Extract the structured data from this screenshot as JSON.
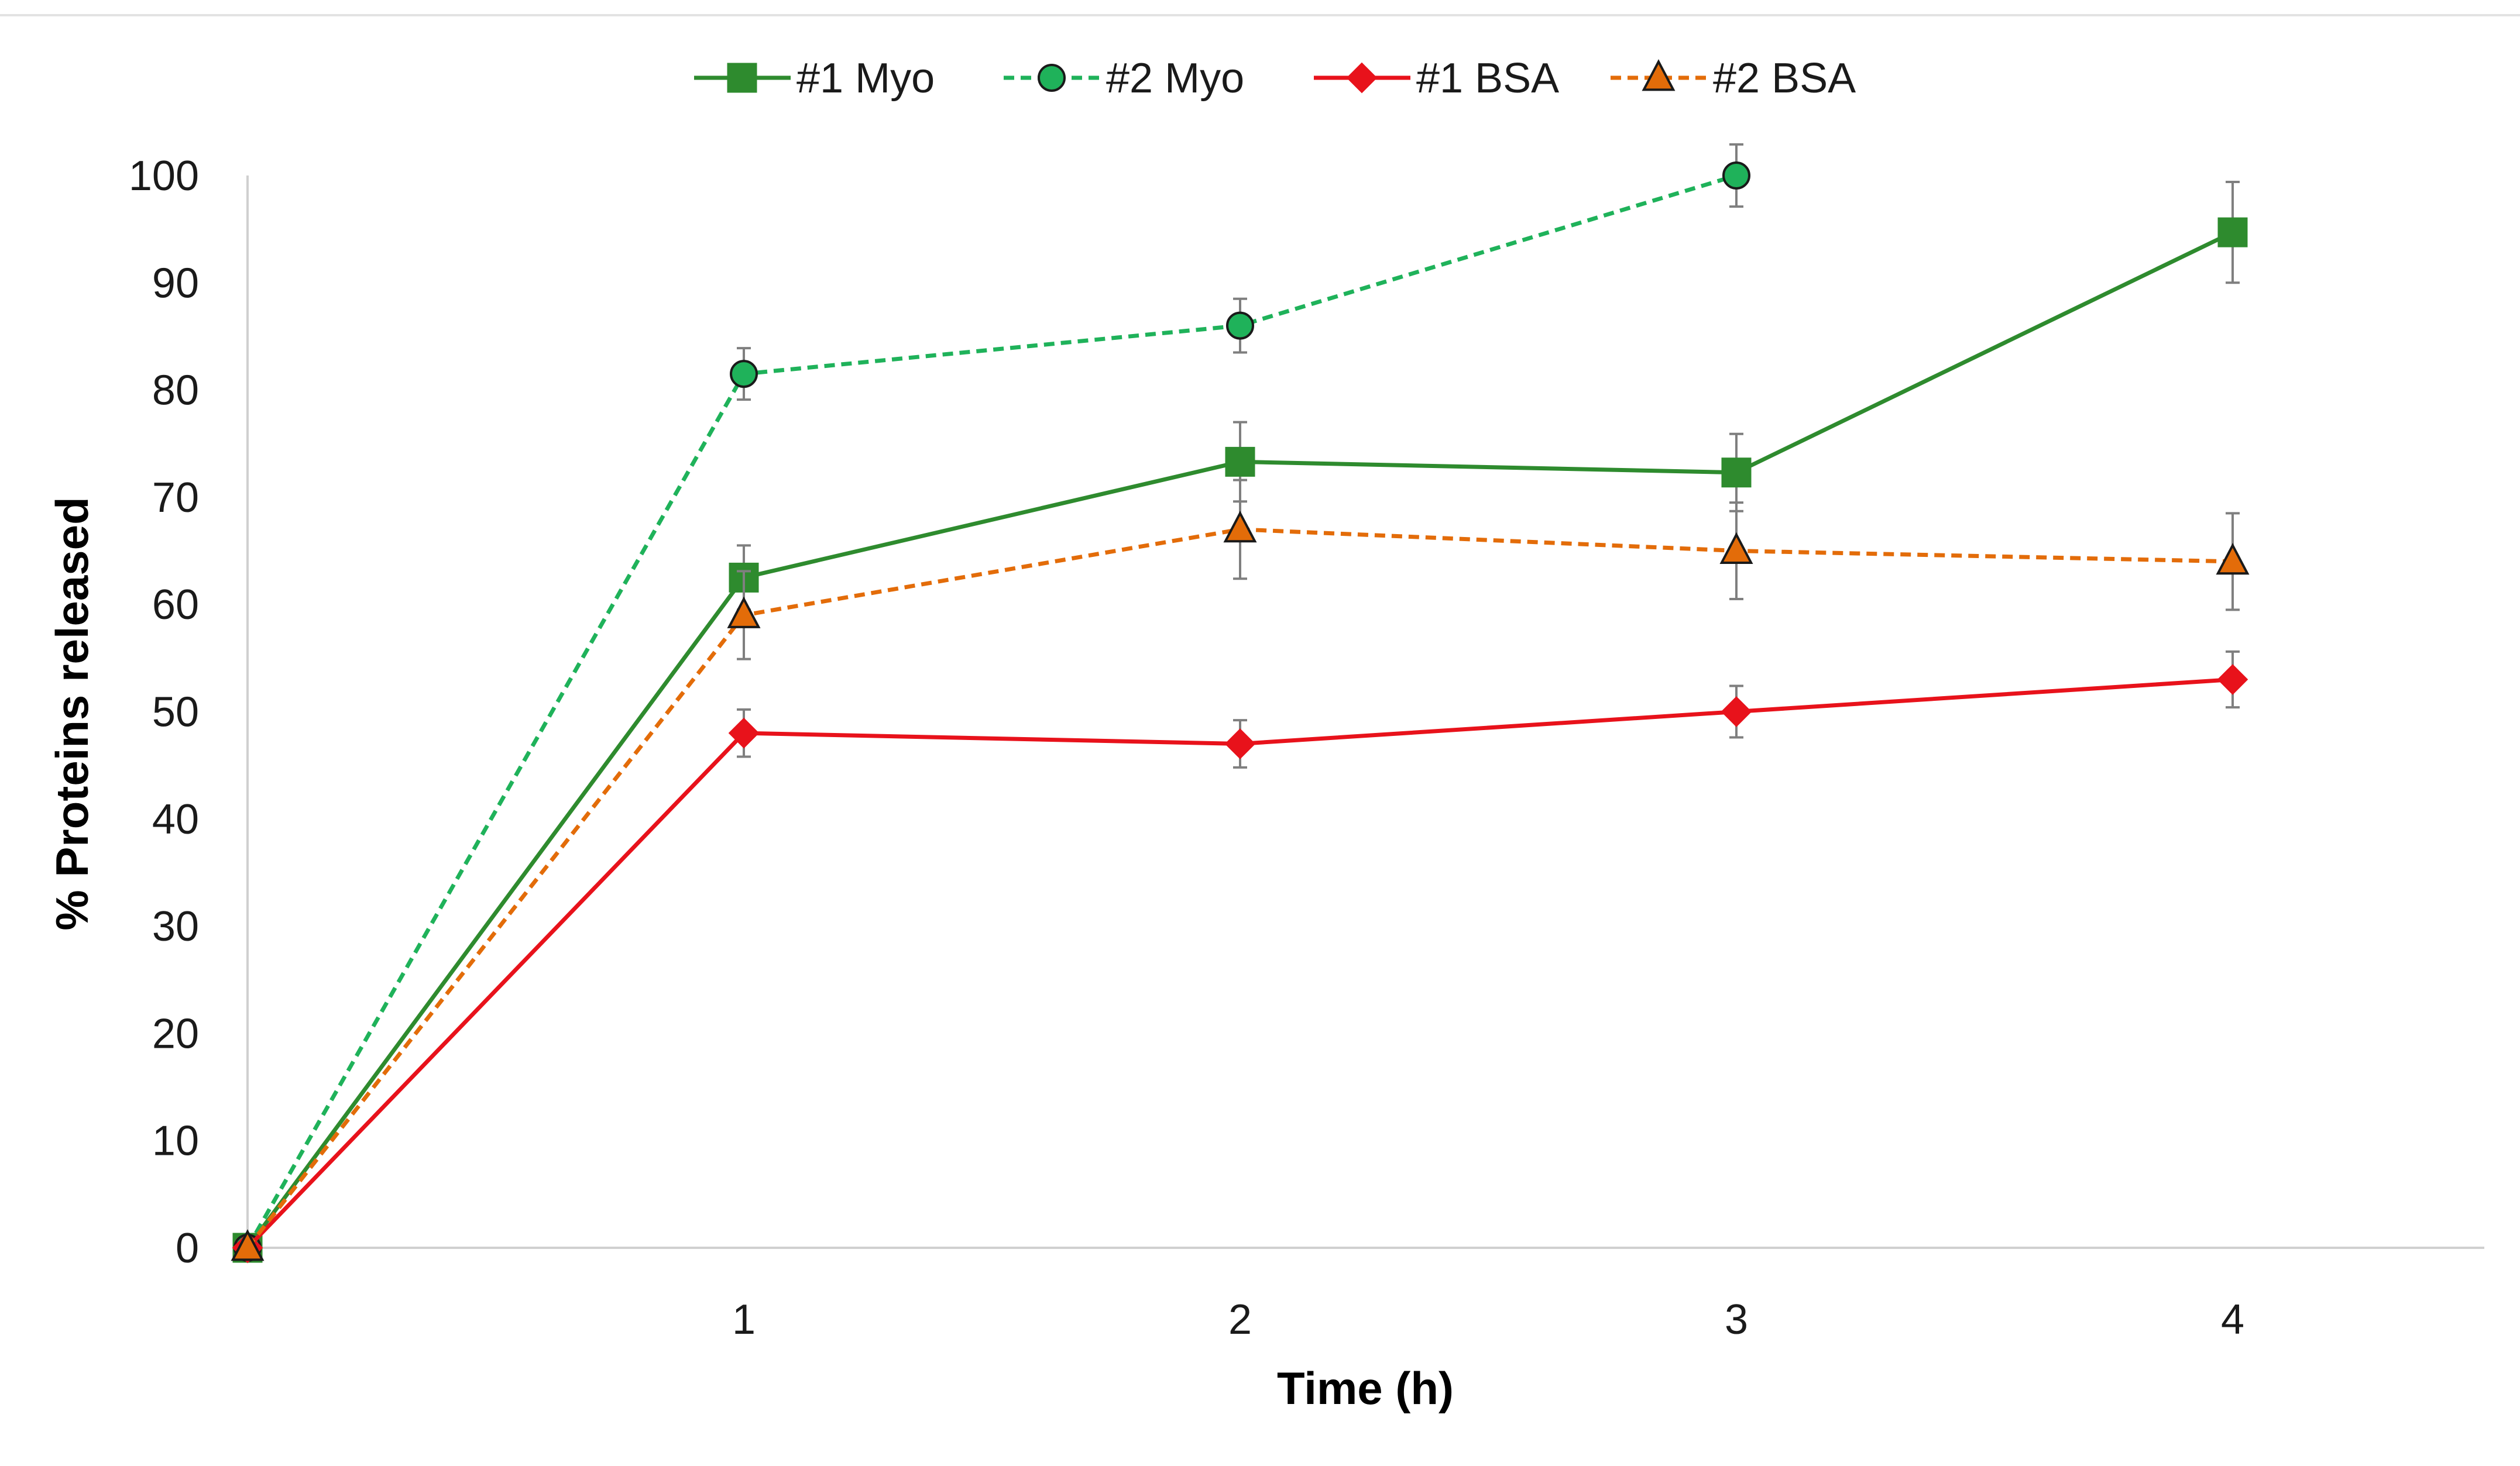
{
  "chart_data": {
    "type": "line",
    "title": "",
    "xlabel": "Time (h)",
    "ylabel": "% Proteins released",
    "xlim": [
      0,
      4.5
    ],
    "ylim": [
      0,
      100
    ],
    "x_ticks": [
      1,
      2,
      3,
      4
    ],
    "x_tick_labels": [
      "1",
      "2",
      "3",
      "4"
    ],
    "y_ticks": [
      0,
      10,
      20,
      30,
      40,
      50,
      60,
      70,
      80,
      90,
      100
    ],
    "y_tick_labels": [
      "0",
      "10",
      "20",
      "30",
      "40",
      "50",
      "60",
      "70",
      "80",
      "90",
      "100"
    ],
    "grid": false,
    "legend_position": "top-center",
    "series": [
      {
        "name": "#1 Myo",
        "color": "#2e8b2e",
        "line_style": "solid",
        "marker": "square",
        "x": [
          0,
          1,
          2,
          3,
          4
        ],
        "values": [
          0,
          62.5,
          73.3,
          72.3,
          94.7
        ],
        "errors": [
          0,
          3.0,
          3.7,
          3.6,
          4.7
        ]
      },
      {
        "name": "#2 Myo",
        "color": "#1fb25a",
        "line_style": "dashed",
        "marker": "circle",
        "x": [
          0,
          1,
          2,
          3
        ],
        "values": [
          0,
          81.5,
          86,
          100
        ],
        "errors": [
          0,
          2.4,
          2.5,
          2.9
        ]
      },
      {
        "name": "#1 BSA",
        "color": "#e8121b",
        "line_style": "solid",
        "marker": "diamond",
        "x": [
          0,
          1,
          2,
          3,
          4
        ],
        "values": [
          0,
          48,
          47,
          50,
          53
        ],
        "errors": [
          0,
          2.2,
          2.2,
          2.4,
          2.6
        ]
      },
      {
        "name": "#2 BSA",
        "color": "#e36c09",
        "line_style": "dashed",
        "marker": "triangle",
        "x": [
          0,
          1,
          2,
          3,
          4
        ],
        "values": [
          0,
          59,
          67,
          65,
          64
        ],
        "errors": [
          0,
          4.1,
          4.6,
          4.5,
          4.5
        ]
      }
    ]
  }
}
